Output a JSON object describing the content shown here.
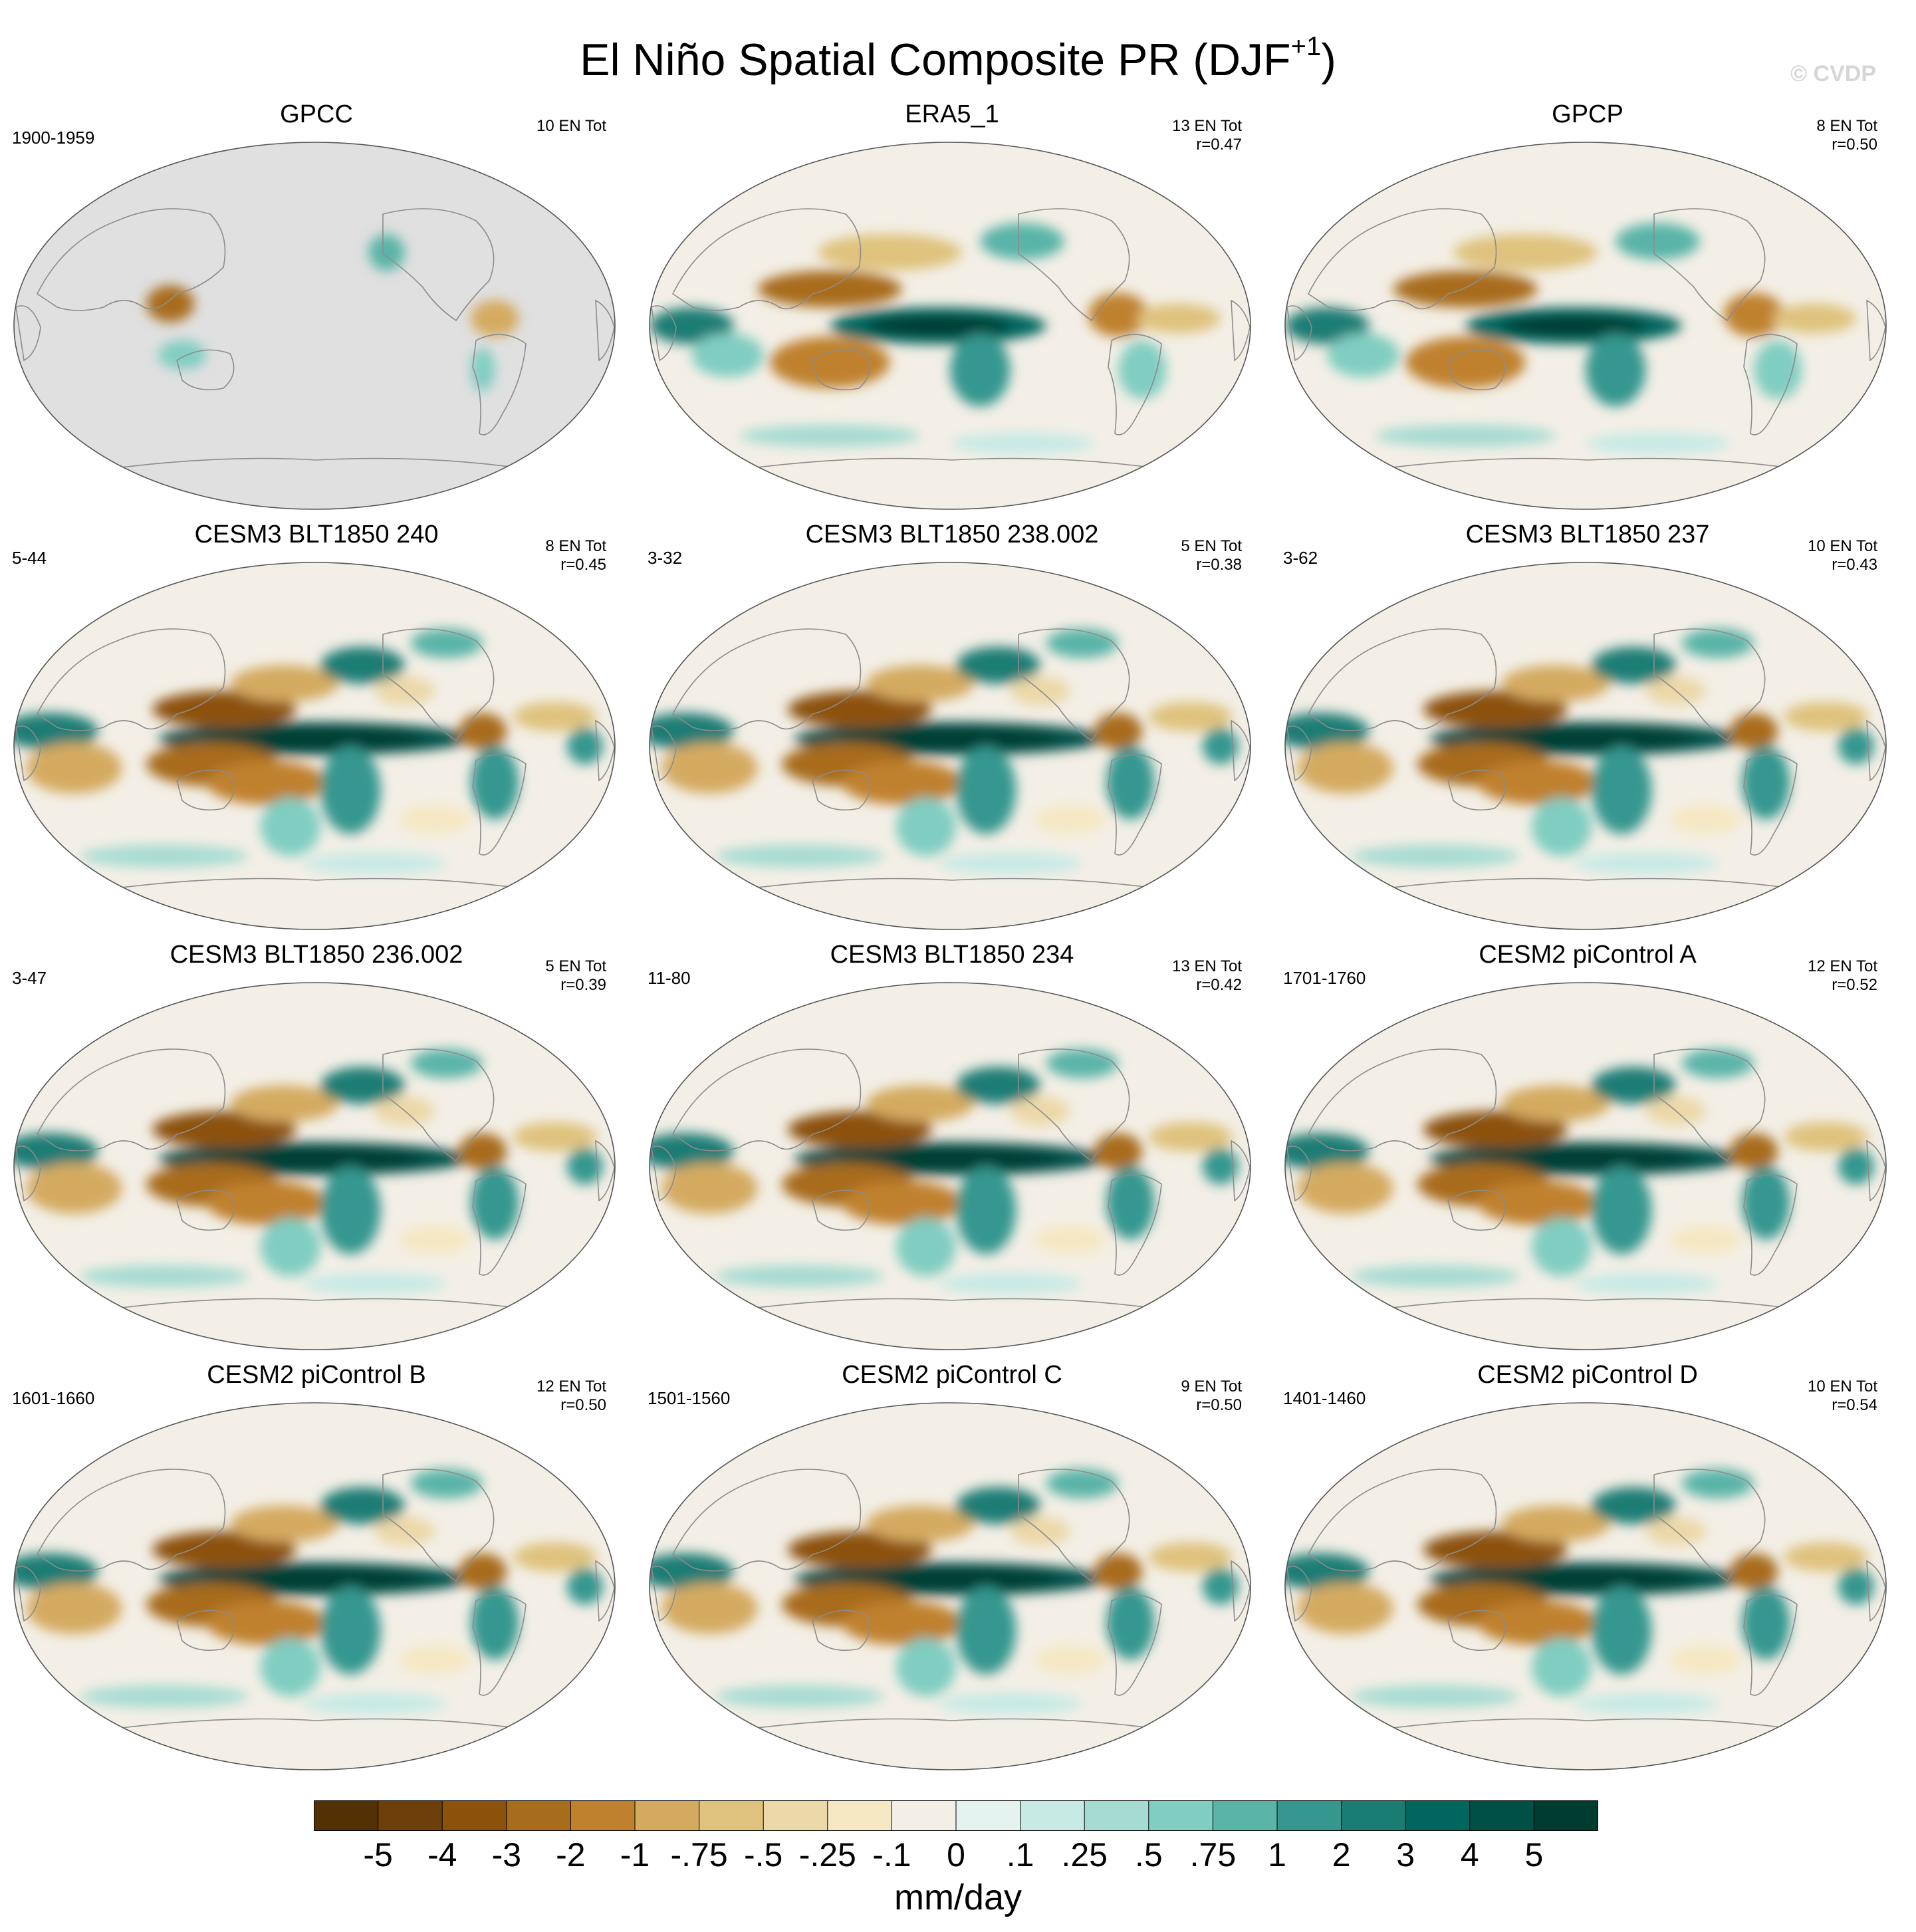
{
  "title": {
    "main": "El Niño Spatial Composite PR (DJF",
    "superscript": "+1",
    "close": ")"
  },
  "watermark": "© CVDP",
  "colorbar": {
    "units": "mm/day",
    "tick_labels": [
      "-5",
      "-4",
      "-3",
      "-2",
      "-1",
      "-.75",
      "-.5",
      "-.25",
      "-.1",
      "0",
      ".1",
      ".25",
      ".5",
      ".75",
      "1",
      "2",
      "3",
      "4",
      "5"
    ],
    "colors": [
      "#543005",
      "#6d3f0b",
      "#8c510a",
      "#a86c1d",
      "#bf812d",
      "#d4aa60",
      "#dfc27d",
      "#ecd8a8",
      "#f6e8c3",
      "#f3efe6",
      "#e4f2f0",
      "#c7eae5",
      "#a6dbd2",
      "#80cdc1",
      "#5ab4a8",
      "#35978f",
      "#1a7d74",
      "#01665e",
      "#015048",
      "#003c30"
    ]
  },
  "colors": {
    "land_gray": "#e0e0e0",
    "neutral": "#f3efe6",
    "coast": "#8c8c8c"
  },
  "panels": [
    {
      "title": "GPCC",
      "left": "1900-1959",
      "right_line1": "10 EN Tot",
      "right_line2": "",
      "pattern": "gpcc"
    },
    {
      "title": "ERA5_1",
      "left": "",
      "right_line1": "13 EN Tot",
      "right_line2": "r=0.47",
      "pattern": "obs"
    },
    {
      "title": "GPCP",
      "left": "",
      "right_line1": "8 EN Tot",
      "right_line2": "r=0.50",
      "pattern": "obs"
    },
    {
      "title": "CESM3 BLT1850 240",
      "left": "5-44",
      "right_line1": "8 EN Tot",
      "right_line2": "r=0.45",
      "pattern": "model"
    },
    {
      "title": "CESM3 BLT1850 238.002",
      "left": "3-32",
      "right_line1": "5 EN Tot",
      "right_line2": "r=0.38",
      "pattern": "model"
    },
    {
      "title": "CESM3 BLT1850 237",
      "left": "3-62",
      "right_line1": "10 EN Tot",
      "right_line2": "r=0.43",
      "pattern": "model"
    },
    {
      "title": "CESM3 BLT1850 236.002",
      "left": "3-47",
      "right_line1": "5 EN Tot",
      "right_line2": "r=0.39",
      "pattern": "model"
    },
    {
      "title": "CESM3 BLT1850 234",
      "left": "11-80",
      "right_line1": "13 EN Tot",
      "right_line2": "r=0.42",
      "pattern": "model"
    },
    {
      "title": "CESM2 piControl A",
      "left": "1701-1760",
      "right_line1": "12 EN Tot",
      "right_line2": "r=0.52",
      "pattern": "model"
    },
    {
      "title": "CESM2 piControl B",
      "left": "1601-1660",
      "right_line1": "12 EN Tot",
      "right_line2": "r=0.50",
      "pattern": "model"
    },
    {
      "title": "CESM2 piControl C",
      "left": "1501-1560",
      "right_line1": "9 EN Tot",
      "right_line2": "r=0.50",
      "pattern": "model"
    },
    {
      "title": "CESM2 piControl D",
      "left": "1401-1460",
      "right_line1": "10 EN Tot",
      "right_line2": "r=0.54",
      "pattern": "model"
    }
  ]
}
